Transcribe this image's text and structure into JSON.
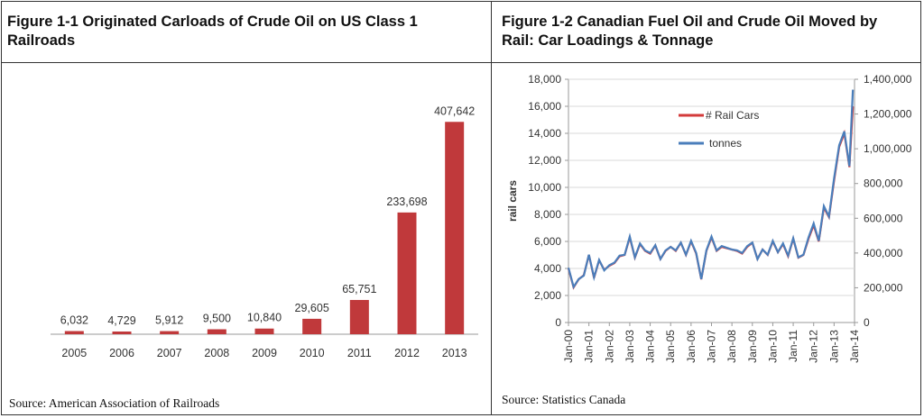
{
  "panels": [
    {
      "title": "Figure 1-1 Originated Carloads of Crude Oil on US Class 1 Railroads",
      "source": "Source: American Association of Railroads"
    },
    {
      "title": "Figure 1-2 Canadian Fuel Oil and Crude Oil Moved by Rail: Car Loadings & Tonnage",
      "source": "Source: Statistics Canada"
    }
  ],
  "colors": {
    "bar": "#c0393b",
    "rail_cars": "#d33a3a",
    "tonnes": "#4a7ebb"
  },
  "chart_data": [
    {
      "type": "bar",
      "title": "Figure 1-1 Originated Carloads of Crude Oil on US Class 1 Railroads",
      "categories": [
        "2005",
        "2006",
        "2007",
        "2008",
        "2009",
        "2010",
        "2011",
        "2012",
        "2013"
      ],
      "values": [
        6032,
        4729,
        5912,
        9500,
        10840,
        29605,
        65751,
        233698,
        407642
      ],
      "value_labels": [
        "6,032",
        "4,729",
        "5,912",
        "9,500",
        "10,840",
        "29,605",
        "65,751",
        "233,698",
        "407,642"
      ],
      "ylim": [
        0,
        460000
      ],
      "xlabel": "",
      "ylabel": "",
      "grid": false
    },
    {
      "type": "line",
      "title": "Figure 1-2 Canadian Fuel Oil and Crude Oil Moved by Rail: Car Loadings & Tonnage",
      "ylabel": "rail cars",
      "ylim": [
        0,
        18000
      ],
      "y2lim": [
        0,
        1400000
      ],
      "yticks": [
        "0",
        "2,000",
        "4,000",
        "6,000",
        "8,000",
        "10,000",
        "12,000",
        "14,000",
        "16,000",
        "18,000"
      ],
      "y2ticks": [
        "0",
        "200,000",
        "400,000",
        "600,000",
        "800,000",
        "1,000,000",
        "1,200,000",
        "1,400,000"
      ],
      "xticks": [
        "Jan-00",
        "Jan-01",
        "Jan-02",
        "Jan-03",
        "Jan-04",
        "Jan-05",
        "Jan-06",
        "Jan-07",
        "Jan-08",
        "Jan-09",
        "Jan-10",
        "Jan-11",
        "Jan-12",
        "Jan-13",
        "Jan-14"
      ],
      "legend_position": "top-left",
      "grid": true,
      "series": [
        {
          "name": "# Rail Cars",
          "axis": "left",
          "x": [
            2000.0,
            2000.25,
            2000.5,
            2000.75,
            2001.0,
            2001.25,
            2001.5,
            2001.75,
            2002.0,
            2002.25,
            2002.5,
            2002.75,
            2003.0,
            2003.25,
            2003.5,
            2003.75,
            2004.0,
            2004.25,
            2004.5,
            2004.75,
            2005.0,
            2005.25,
            2005.5,
            2005.75,
            2006.0,
            2006.25,
            2006.5,
            2006.75,
            2007.0,
            2007.25,
            2007.5,
            2007.75,
            2008.0,
            2008.25,
            2008.5,
            2008.75,
            2009.0,
            2009.25,
            2009.5,
            2009.75,
            2010.0,
            2010.25,
            2010.5,
            2010.75,
            2011.0,
            2011.25,
            2011.5,
            2011.75,
            2012.0,
            2012.25,
            2012.5,
            2012.75,
            2013.0,
            2013.25,
            2013.5,
            2013.75,
            2013.92
          ],
          "values": [
            4000,
            2600,
            3200,
            3500,
            5000,
            3300,
            4600,
            3900,
            4200,
            4400,
            4900,
            5000,
            6300,
            4800,
            5800,
            5300,
            5100,
            5700,
            4700,
            5300,
            5600,
            5300,
            5900,
            5000,
            6000,
            5100,
            3200,
            5300,
            6300,
            5300,
            5600,
            5500,
            5400,
            5300,
            5100,
            5600,
            5900,
            4700,
            5400,
            5000,
            6000,
            5200,
            5800,
            4900,
            6200,
            4800,
            5000,
            6200,
            7200,
            6000,
            8500,
            7800,
            10500,
            13000,
            14000,
            11500,
            16000
          ]
        },
        {
          "name": "tonnes",
          "axis": "right",
          "x": [
            2000.0,
            2000.25,
            2000.5,
            2000.75,
            2001.0,
            2001.25,
            2001.5,
            2001.75,
            2002.0,
            2002.25,
            2002.5,
            2002.75,
            2003.0,
            2003.25,
            2003.5,
            2003.75,
            2004.0,
            2004.25,
            2004.5,
            2004.75,
            2005.0,
            2005.25,
            2005.5,
            2005.75,
            2006.0,
            2006.25,
            2006.5,
            2006.75,
            2007.0,
            2007.25,
            2007.5,
            2007.75,
            2008.0,
            2008.25,
            2008.5,
            2008.75,
            2009.0,
            2009.25,
            2009.5,
            2009.75,
            2010.0,
            2010.25,
            2010.5,
            2010.75,
            2011.0,
            2011.25,
            2011.5,
            2011.75,
            2012.0,
            2012.25,
            2012.5,
            2012.75,
            2013.0,
            2013.25,
            2013.5,
            2013.75,
            2013.92
          ],
          "values": [
            315000,
            205000,
            250000,
            270000,
            390000,
            260000,
            360000,
            300000,
            330000,
            345000,
            385000,
            390000,
            495000,
            375000,
            455000,
            415000,
            400000,
            445000,
            365000,
            415000,
            435000,
            415000,
            460000,
            390000,
            470000,
            400000,
            250000,
            415000,
            495000,
            415000,
            440000,
            430000,
            420000,
            415000,
            400000,
            440000,
            460000,
            365000,
            420000,
            390000,
            470000,
            405000,
            455000,
            385000,
            485000,
            375000,
            390000,
            490000,
            570000,
            470000,
            670000,
            610000,
            830000,
            1020000,
            1100000,
            900000,
            1340000
          ]
        }
      ]
    }
  ]
}
